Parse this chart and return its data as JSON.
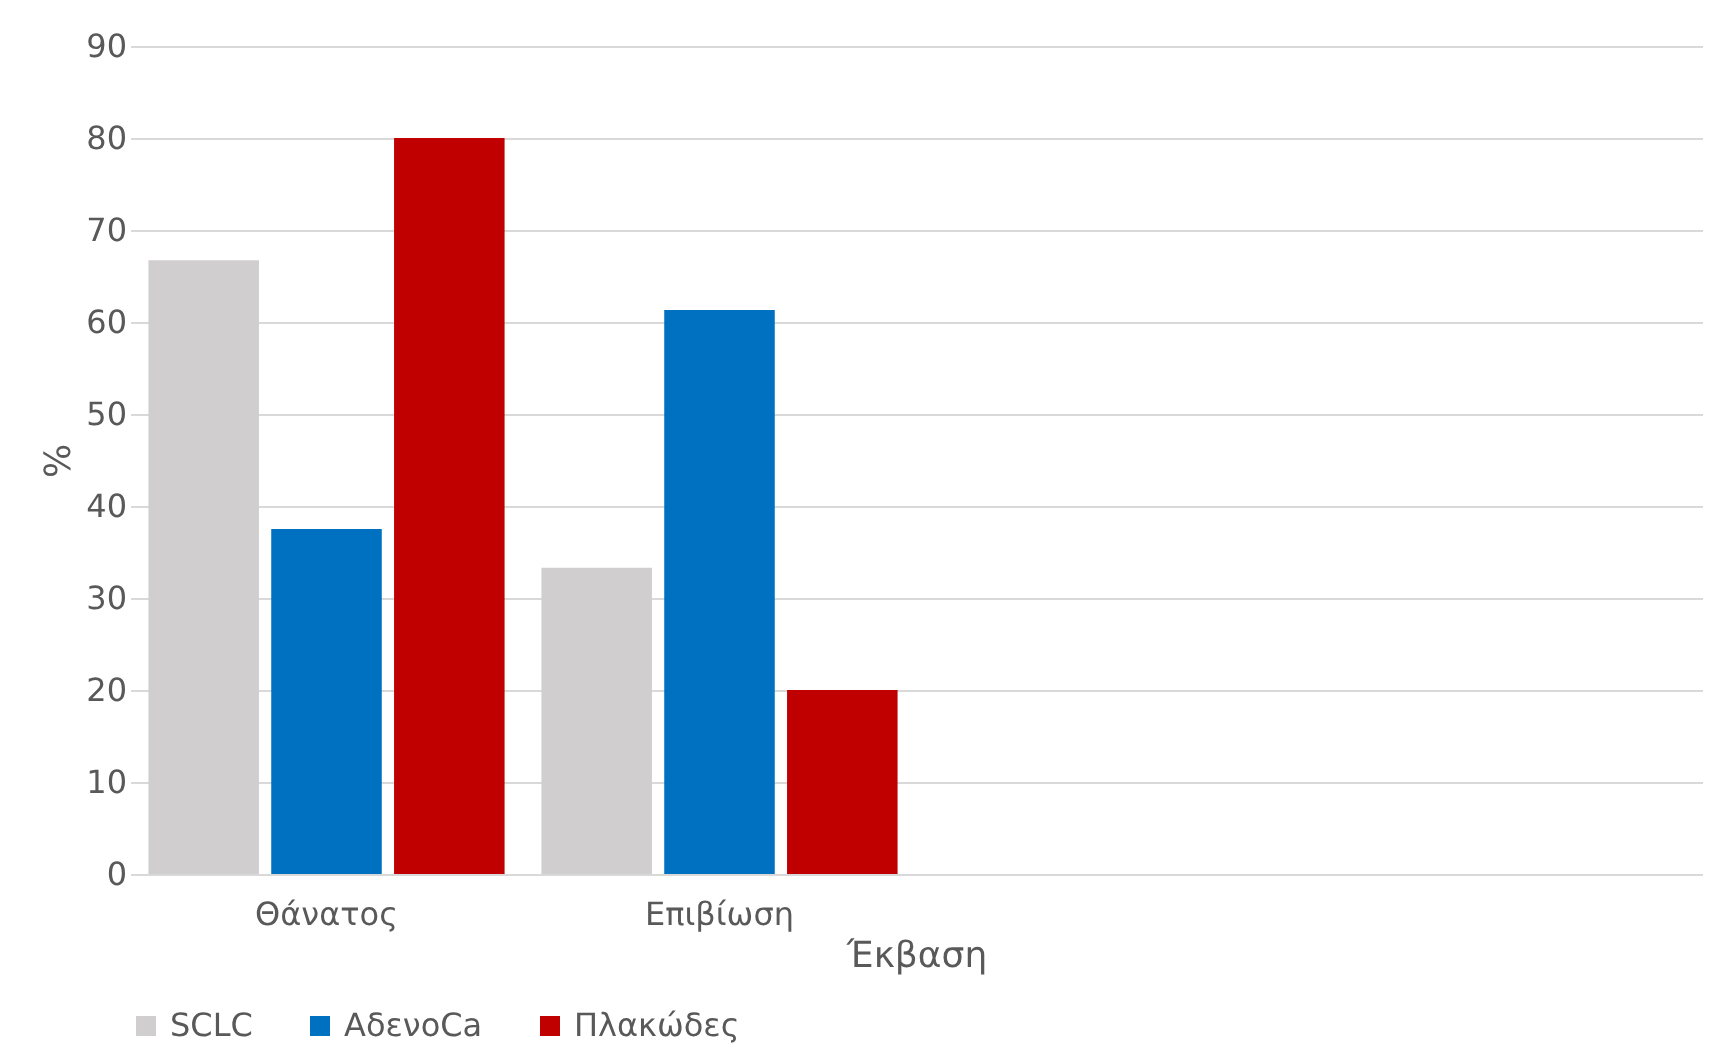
{
  "chart_data": {
    "type": "bar",
    "xlabel": "Έκβαση",
    "ylabel": "%",
    "categories": [
      "Θάνατος",
      "Επιβίωση",
      null,
      null
    ],
    "series": [
      {
        "name": "SCLC",
        "color": "#d0cece",
        "values": [
          66.7,
          33.3,
          null,
          null
        ]
      },
      {
        "name": "ΑδενοCa",
        "color": "#0070c0",
        "values": [
          37.5,
          61.3,
          null,
          null
        ]
      },
      {
        "name": "Πλακώδες",
        "color": "#c00000",
        "values": [
          80,
          20,
          null,
          null
        ]
      }
    ],
    "ylim": [
      0,
      90
    ],
    "yticks": [
      0,
      10,
      20,
      30,
      40,
      50,
      60,
      70,
      80,
      90
    ],
    "grid": "y",
    "legend": "bottom"
  }
}
